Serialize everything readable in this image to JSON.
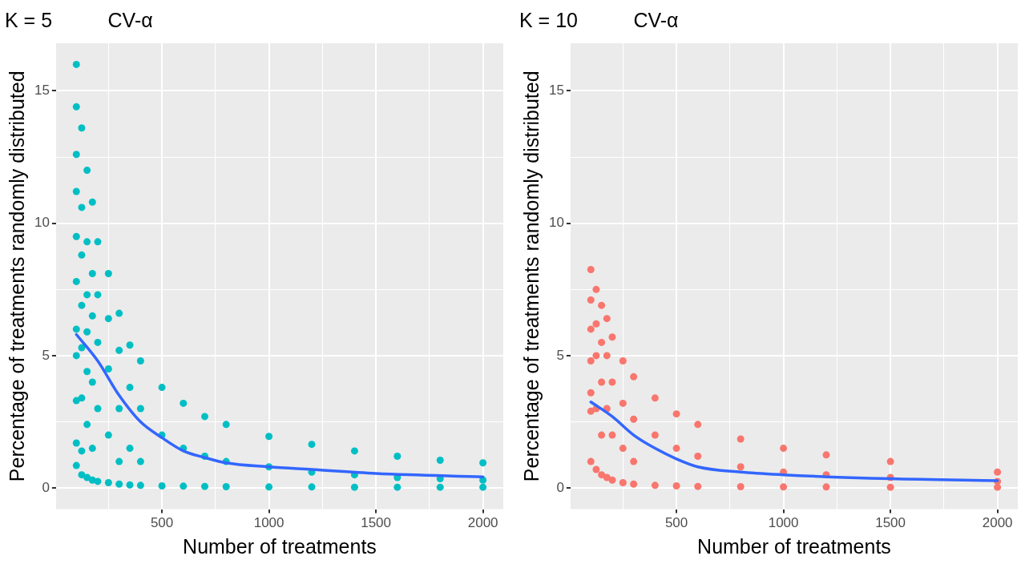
{
  "chart_data": [
    {
      "type": "scatter",
      "title": "K = 5          CV-α",
      "xlabel": "Number of treatments",
      "ylabel": "Percentage of treatments randomly distributed",
      "xlim": [
        5,
        2095
      ],
      "ylim": [
        -0.8,
        16.8
      ],
      "xticks": [
        {
          "value": 250,
          "label": null
        },
        500,
        {
          "value": 750,
          "label": null
        },
        1000,
        {
          "value": 1250,
          "label": null
        },
        1500,
        {
          "value": 1750,
          "label": null
        },
        2000
      ],
      "yticks": [
        0,
        {
          "value": 2.5,
          "label": null
        },
        5,
        {
          "value": 7.5,
          "label": null
        },
        10,
        {
          "value": 12.5,
          "label": null
        },
        15
      ],
      "grid": true,
      "legend": false,
      "series": [
        {
          "type": "scatter",
          "marker": "circle",
          "color": "#00bfc4",
          "x": [
            100,
            100,
            100,
            100,
            100,
            100,
            100,
            100,
            100,
            100,
            100,
            125,
            125,
            125,
            125,
            125,
            125,
            125,
            125,
            150,
            150,
            150,
            150,
            150,
            150,
            150,
            175,
            175,
            175,
            175,
            175,
            175,
            200,
            200,
            200,
            200,
            200,
            250,
            250,
            250,
            250,
            250,
            300,
            300,
            300,
            300,
            300,
            350,
            350,
            350,
            350,
            400,
            400,
            400,
            400,
            500,
            500,
            500,
            600,
            600,
            600,
            700,
            700,
            700,
            800,
            800,
            800,
            1000,
            1000,
            1000,
            1200,
            1200,
            1200,
            1400,
            1400,
            1400,
            1600,
            1600,
            1600,
            1800,
            1800,
            1800,
            2000,
            2000,
            2000
          ],
          "values": [
            16.0,
            14.4,
            12.6,
            11.2,
            9.5,
            7.8,
            6.0,
            5.0,
            3.3,
            1.7,
            0.85,
            13.6,
            10.6,
            8.8,
            6.9,
            5.3,
            3.4,
            1.4,
            0.5,
            12.0,
            9.3,
            7.3,
            5.9,
            4.4,
            2.4,
            0.4,
            10.8,
            8.1,
            6.5,
            4.0,
            1.5,
            0.3,
            9.3,
            7.3,
            5.5,
            3.0,
            0.25,
            8.1,
            6.4,
            4.5,
            2.0,
            0.2,
            6.6,
            5.2,
            3.0,
            1.0,
            0.15,
            5.4,
            3.8,
            1.5,
            0.12,
            4.8,
            3.0,
            1.0,
            0.1,
            3.8,
            2.0,
            0.08,
            3.2,
            1.5,
            0.07,
            2.7,
            1.2,
            0.06,
            2.4,
            1.0,
            0.05,
            1.95,
            0.8,
            0.04,
            1.65,
            0.6,
            0.04,
            1.4,
            0.5,
            0.03,
            1.2,
            0.4,
            0.03,
            1.05,
            0.35,
            0.03,
            0.95,
            0.3,
            0.03
          ]
        },
        {
          "type": "line",
          "marker": "none",
          "color": "#3366ff",
          "x": [
            100,
            200,
            300,
            400,
            500,
            600,
            700,
            800,
            1000,
            1200,
            1500,
            2000
          ],
          "values": [
            5.8,
            4.8,
            3.5,
            2.5,
            1.9,
            1.4,
            1.15,
            0.95,
            0.8,
            0.7,
            0.55,
            0.42
          ]
        }
      ]
    },
    {
      "type": "scatter",
      "title": "K = 10          CV-α",
      "xlabel": "Number of treatments",
      "ylabel": "Percentage of treatments randomly distributed",
      "xlim": [
        5,
        2095
      ],
      "ylim": [
        -0.8,
        16.8
      ],
      "xticks": [
        {
          "value": 250,
          "label": null
        },
        500,
        {
          "value": 750,
          "label": null
        },
        1000,
        {
          "value": 1250,
          "label": null
        },
        1500,
        {
          "value": 1750,
          "label": null
        },
        2000
      ],
      "yticks": [
        0,
        {
          "value": 2.5,
          "label": null
        },
        5,
        {
          "value": 7.5,
          "label": null
        },
        10,
        {
          "value": 12.5,
          "label": null
        },
        15
      ],
      "grid": true,
      "legend": false,
      "series": [
        {
          "type": "scatter",
          "marker": "circle",
          "color": "#f8766d",
          "x": [
            100,
            100,
            100,
            100,
            100,
            100,
            100,
            125,
            125,
            125,
            125,
            125,
            150,
            150,
            150,
            150,
            150,
            175,
            175,
            175,
            175,
            200,
            200,
            200,
            200,
            250,
            250,
            250,
            250,
            300,
            300,
            300,
            300,
            400,
            400,
            400,
            500,
            500,
            500,
            600,
            600,
            600,
            800,
            800,
            800,
            1000,
            1000,
            1000,
            1200,
            1200,
            1200,
            1500,
            1500,
            1500,
            2000,
            2000,
            2000
          ],
          "values": [
            8.25,
            7.1,
            6.0,
            4.8,
            3.6,
            2.9,
            1.0,
            7.5,
            6.2,
            5.0,
            3.0,
            0.7,
            6.9,
            5.5,
            4.0,
            2.0,
            0.5,
            6.4,
            5.0,
            3.0,
            0.4,
            5.7,
            4.0,
            2.0,
            0.3,
            4.8,
            3.2,
            1.5,
            0.2,
            4.2,
            2.6,
            1.0,
            0.15,
            3.4,
            2.0,
            0.1,
            2.8,
            1.5,
            0.08,
            2.4,
            1.2,
            0.06,
            1.85,
            0.8,
            0.05,
            1.5,
            0.6,
            0.04,
            1.25,
            0.5,
            0.04,
            1.0,
            0.4,
            0.03,
            0.6,
            0.25,
            0.03
          ]
        },
        {
          "type": "line",
          "marker": "none",
          "color": "#3366ff",
          "x": [
            100,
            200,
            300,
            400,
            500,
            600,
            800,
            1000,
            1500,
            2000
          ],
          "values": [
            3.25,
            2.7,
            2.0,
            1.5,
            1.1,
            0.8,
            0.6,
            0.5,
            0.35,
            0.28
          ]
        }
      ]
    }
  ]
}
